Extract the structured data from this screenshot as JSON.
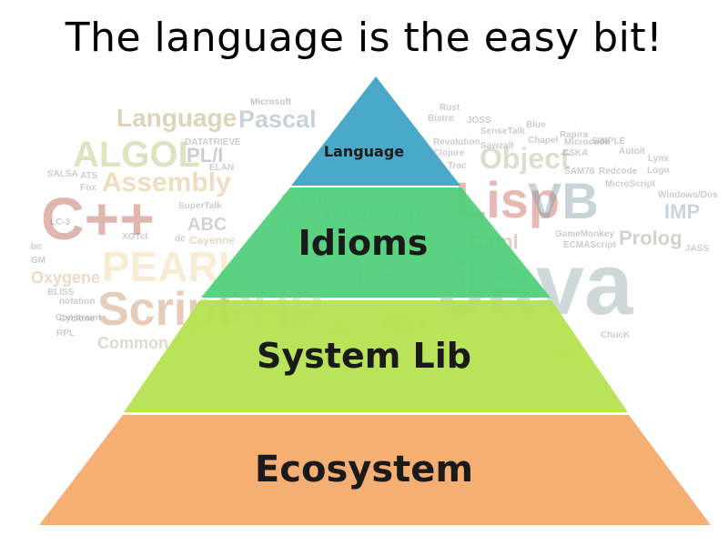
{
  "title": "The language is the easy bit!",
  "pyramid": {
    "layers": [
      {
        "label": "Language",
        "color": "#4aa9c9"
      },
      {
        "label": "Idioms",
        "color": "#4dcf77"
      },
      {
        "label": "System Lib",
        "color": "#b4e24c"
      },
      {
        "label": "Ecosystem",
        "color": "#f5a967"
      }
    ]
  },
  "word_cloud": [
    {
      "text": "Microsoft",
      "color": "#777777"
    },
    {
      "text": "Language",
      "color": "#b59a5a"
    },
    {
      "text": "Pascal",
      "color": "#7a9aa6"
    },
    {
      "text": "ALGOL",
      "color": "#b3bd6b"
    },
    {
      "text": "PL/I",
      "color": "#8a8a8a"
    },
    {
      "text": "DATATRIEVE",
      "color": "#888888"
    },
    {
      "text": "ELAN",
      "color": "#888888"
    },
    {
      "text": "Assembly",
      "color": "#d9b06a"
    },
    {
      "text": "SALSA",
      "color": "#888888"
    },
    {
      "text": "ATS",
      "color": "#888888"
    },
    {
      "text": "Fox",
      "color": "#888888"
    },
    {
      "text": "C++",
      "color": "#b5553f"
    },
    {
      "text": "LC-3",
      "color": "#888888"
    },
    {
      "text": "SuperTalk",
      "color": "#888888"
    },
    {
      "text": "ABC",
      "color": "#999999"
    },
    {
      "text": "XOTcl",
      "color": "#888888"
    },
    {
      "text": "dc",
      "color": "#888888"
    },
    {
      "text": "Cayenne",
      "color": "#c4a572"
    },
    {
      "text": "bc",
      "color": "#888888"
    },
    {
      "text": "GM",
      "color": "#888888"
    },
    {
      "text": "Oxygene",
      "color": "#d9a37a"
    },
    {
      "text": "PEARL",
      "color": "#f0d29a"
    },
    {
      "text": "BLISS",
      "color": "#888888"
    },
    {
      "text": "notation",
      "color": "#888888"
    },
    {
      "text": "Constraint",
      "color": "#888888"
    },
    {
      "text": "Script",
      "color": "#c48a5a"
    },
    {
      "text": "Cyclone",
      "color": "#888888"
    },
    {
      "text": "RPL",
      "color": "#888888"
    },
    {
      "text": "Common",
      "color": "#a9a98a"
    },
    {
      "text": "PHP",
      "color": "#9fc0a8"
    },
    {
      "text": "Shell",
      "color": "#99b0bf"
    },
    {
      "text": "JavaScript",
      "color": "#9fb6c4"
    },
    {
      "text": "Visual",
      "color": "#99b0bf"
    },
    {
      "text": "Programming",
      "color": "#a4c2a6"
    },
    {
      "text": "REXX",
      "color": "#a0b0a0"
    },
    {
      "text": "NET",
      "color": "#888888"
    },
    {
      "text": "Rust",
      "color": "#888888"
    },
    {
      "text": "JOSS",
      "color": "#888888"
    },
    {
      "text": "Bistro",
      "color": "#888888"
    },
    {
      "text": "SenseTalk",
      "color": "#888888"
    },
    {
      "text": "Blue",
      "color": "#888888"
    },
    {
      "text": "Revolution",
      "color": "#888888"
    },
    {
      "text": "Sawzall",
      "color": "#888888"
    },
    {
      "text": "Chapel",
      "color": "#888888"
    },
    {
      "text": "Clojure",
      "color": "#888888"
    },
    {
      "text": "Object",
      "color": "#a9b78a"
    },
    {
      "text": "Trac",
      "color": "#888888"
    },
    {
      "text": "Rapira",
      "color": "#888888"
    },
    {
      "text": "Microcode",
      "color": "#888888"
    },
    {
      "text": "CSKA",
      "color": "#888888"
    },
    {
      "text": "SIMPLE",
      "color": "#888888"
    },
    {
      "text": "SAM76",
      "color": "#888888"
    },
    {
      "text": "Redcode",
      "color": "#888888"
    },
    {
      "text": "Autoit",
      "color": "#888888"
    },
    {
      "text": "Lynx",
      "color": "#888888"
    },
    {
      "text": "Logo",
      "color": "#888888"
    },
    {
      "text": "Lisp",
      "color": "#c45a4a"
    },
    {
      "text": "VB",
      "color": "#7f9aa6"
    },
    {
      "text": "MicroScript",
      "color": "#888888"
    },
    {
      "text": "Windows/Dos",
      "color": "#888888"
    },
    {
      "text": "IMP",
      "color": "#7f9aa6"
    },
    {
      "text": "Caml",
      "color": "#b78a7a"
    },
    {
      "text": "GameMonkey",
      "color": "#888888"
    },
    {
      "text": "ECMAScript",
      "color": "#888888"
    },
    {
      "text": "Prolog",
      "color": "#999988"
    },
    {
      "text": "JASS",
      "color": "#888888"
    },
    {
      "text": "Java",
      "color": "#8fa6a8"
    },
    {
      "text": "ChucK",
      "color": "#888888"
    },
    {
      "text": "Forth",
      "color": "#888888"
    }
  ]
}
